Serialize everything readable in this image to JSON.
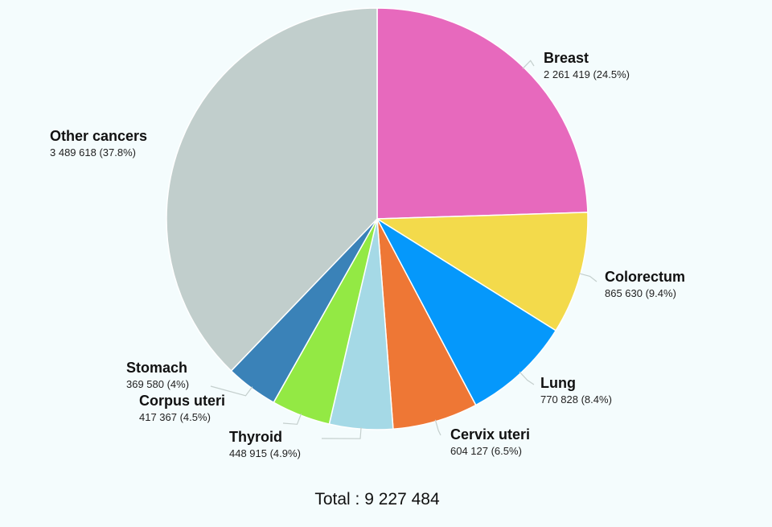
{
  "chart_data": {
    "type": "pie",
    "total_label": "Total : 9 227 484",
    "slices": [
      {
        "name": "Breast",
        "value": 2261419,
        "value_label": "2 261 419 (24.5%)",
        "color": "#e769bd"
      },
      {
        "name": "Colorectum",
        "value": 865630,
        "value_label": "865 630 (9.4%)",
        "color": "#f3da4b"
      },
      {
        "name": "Lung",
        "value": 770828,
        "value_label": "770 828 (8.4%)",
        "color": "#0598fb"
      },
      {
        "name": "Cervix uteri",
        "value": 604127,
        "value_label": "604 127 (6.5%)",
        "color": "#ee7735"
      },
      {
        "name": "Thyroid",
        "value": 448915,
        "value_label": "448 915 (4.9%)",
        "color": "#a5d9e6"
      },
      {
        "name": "Corpus uteri",
        "value": 417367,
        "value_label": "417 367 (4.5%)",
        "color": "#93e944"
      },
      {
        "name": "Stomach",
        "value": 369580,
        "value_label": "369 580 (4%)",
        "color": "#3a82b8"
      },
      {
        "name": "Other cancers",
        "value": 3489618,
        "value_label": "3 489 618 (37.8%)",
        "color": "#c1cecc"
      }
    ]
  }
}
